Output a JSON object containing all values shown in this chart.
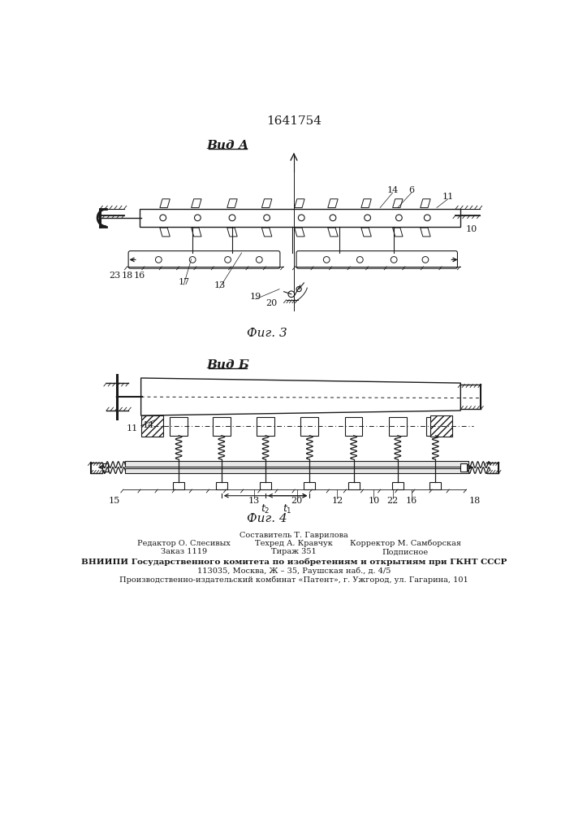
{
  "patent_number": "1641754",
  "fig3_label": "Вид А",
  "fig4_label": "Вид Б",
  "fig3_caption": "Фиг. 3",
  "fig4_caption": "Фиг. 4",
  "footer_col1_line1": "Редактор О. Слесивых",
  "footer_col1_line2": "Заказ 1119",
  "footer_col2_line1": "Составитель Т. Гаврилова",
  "footer_col2_line2": "Техред А. Кравчук",
  "footer_col2_line3": "Тираж 351",
  "footer_col3_line1": "Корректор М. Самборская",
  "footer_col3_line2": "Подписное",
  "footer_line4": "ВНИИПИ Государственного комитета по изобретениям и открытиям при ГКНТ СССР",
  "footer_line5": "113035, Москва, Ж – 35, Раушская наб., д. 4/5",
  "footer_line6": "Производственно-издательский комбинат «Патент», г. Ужгород, ул. Гагарина, 101",
  "bg_color": "#ffffff",
  "line_color": "#1a1a1a"
}
